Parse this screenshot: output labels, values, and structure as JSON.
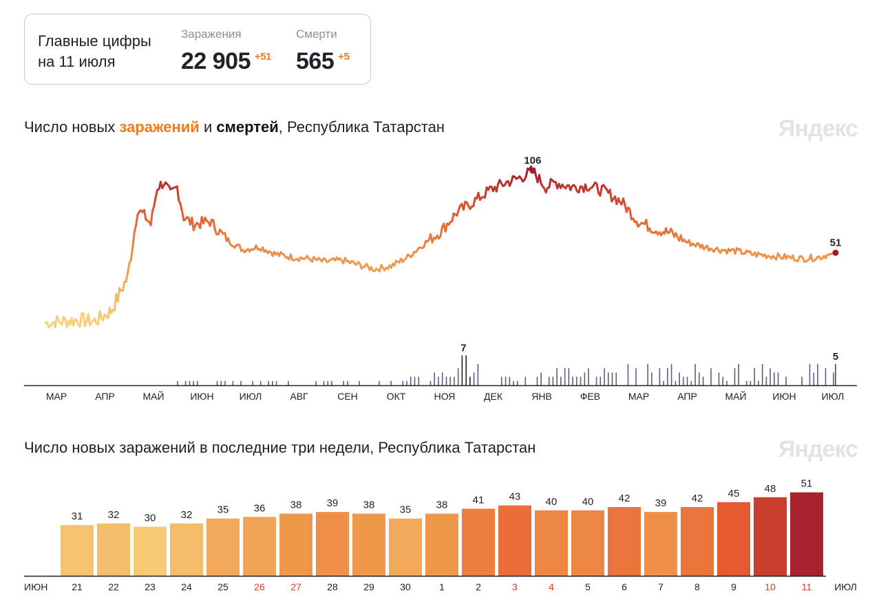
{
  "summary": {
    "heading_line1": "Главные цифры",
    "heading_line2": "на 11 июля",
    "infections": {
      "label": "Заражения",
      "value": "22 905",
      "delta": "+51"
    },
    "deaths": {
      "label": "Смерти",
      "value": "565",
      "delta": "+5"
    }
  },
  "chart1_title": {
    "prefix": "Число новых ",
    "infections_word": "заражений",
    "middle": " и ",
    "deaths_word": "смертей",
    "suffix": ", Республика Татарстан"
  },
  "chart2_title": "Число новых заражений в последние три недели, Республика Татарстан",
  "brand": "Яндекс",
  "colors": {
    "accent_orange": "#f07a1e",
    "weekend_red": "#e03a1e",
    "death_bar": "#5a5f7d",
    "peak_marker": "#9e1f2a",
    "axis": "#1f1f1f"
  },
  "chart_data": [
    {
      "type": "line",
      "title": "Число новых заражений и смертей, Республика Татарстан",
      "x_months": [
        "МАР",
        "АПР",
        "МАЙ",
        "ИЮН",
        "ИЮЛ",
        "АВГ",
        "СЕН",
        "ОКТ",
        "НОЯ",
        "ДЕК",
        "ЯНВ",
        "ФЕВ",
        "МАР",
        "АПР",
        "МАЙ",
        "ИЮН",
        "ИЮЛ"
      ],
      "series": [
        {
          "name": "заражений",
          "points": [
            [
              0,
              4
            ],
            [
              5,
              5
            ],
            [
              10,
              6
            ],
            [
              15,
              5
            ],
            [
              20,
              12
            ],
            [
              25,
              35
            ],
            [
              28,
              80
            ],
            [
              30,
              76
            ],
            [
              32,
              70
            ],
            [
              34,
              95
            ],
            [
              36,
              98
            ],
            [
              38,
              90
            ],
            [
              40,
              95
            ],
            [
              42,
              75
            ],
            [
              45,
              70
            ],
            [
              50,
              72
            ],
            [
              55,
              60
            ],
            [
              60,
              53
            ],
            [
              65,
              55
            ],
            [
              70,
              50
            ],
            [
              75,
              48
            ],
            [
              80,
              47
            ],
            [
              85,
              45
            ],
            [
              90,
              46
            ],
            [
              95,
              43
            ],
            [
              100,
              40
            ],
            [
              105,
              42
            ],
            [
              110,
              48
            ],
            [
              115,
              57
            ],
            [
              120,
              65
            ],
            [
              125,
              78
            ],
            [
              130,
              85
            ],
            [
              135,
              93
            ],
            [
              140,
              98
            ],
            [
              145,
              102
            ],
            [
              148,
              106
            ],
            [
              150,
              100
            ],
            [
              152,
              95
            ],
            [
              155,
              98
            ],
            [
              160,
              95
            ],
            [
              165,
              96
            ],
            [
              170,
              92
            ],
            [
              175,
              85
            ],
            [
              180,
              72
            ],
            [
              185,
              67
            ],
            [
              190,
              64
            ],
            [
              195,
              58
            ],
            [
              200,
              55
            ],
            [
              205,
              53
            ],
            [
              210,
              52
            ],
            [
              215,
              50
            ],
            [
              220,
              49
            ],
            [
              225,
              48
            ],
            [
              230,
              47
            ],
            [
              235,
              48
            ],
            [
              240,
              51
            ]
          ],
          "peaks": [
            {
              "label": "106",
              "value": 106
            },
            {
              "label": "51",
              "value": 51
            }
          ]
        },
        {
          "name": "смертей",
          "max_labels": [
            {
              "label": "7",
              "value": 7
            },
            {
              "label": "5",
              "value": 5
            }
          ]
        }
      ]
    },
    {
      "type": "bar",
      "title": "Число новых заражений в последние три недели, Республика Татарстан",
      "x_start_label": "ИЮН",
      "x_end_label": "ИЮЛ",
      "categories": [
        "21",
        "22",
        "23",
        "24",
        "25",
        "26",
        "27",
        "28",
        "29",
        "30",
        "1",
        "2",
        "3",
        "4",
        "5",
        "6",
        "7",
        "8",
        "9",
        "10",
        "11"
      ],
      "values": [
        31,
        32,
        30,
        32,
        35,
        36,
        38,
        39,
        38,
        35,
        38,
        41,
        43,
        40,
        40,
        42,
        39,
        42,
        45,
        48,
        51
      ],
      "weekend": [
        false,
        false,
        false,
        false,
        false,
        true,
        true,
        false,
        false,
        false,
        false,
        false,
        true,
        true,
        false,
        false,
        false,
        false,
        false,
        true,
        true
      ]
    }
  ]
}
